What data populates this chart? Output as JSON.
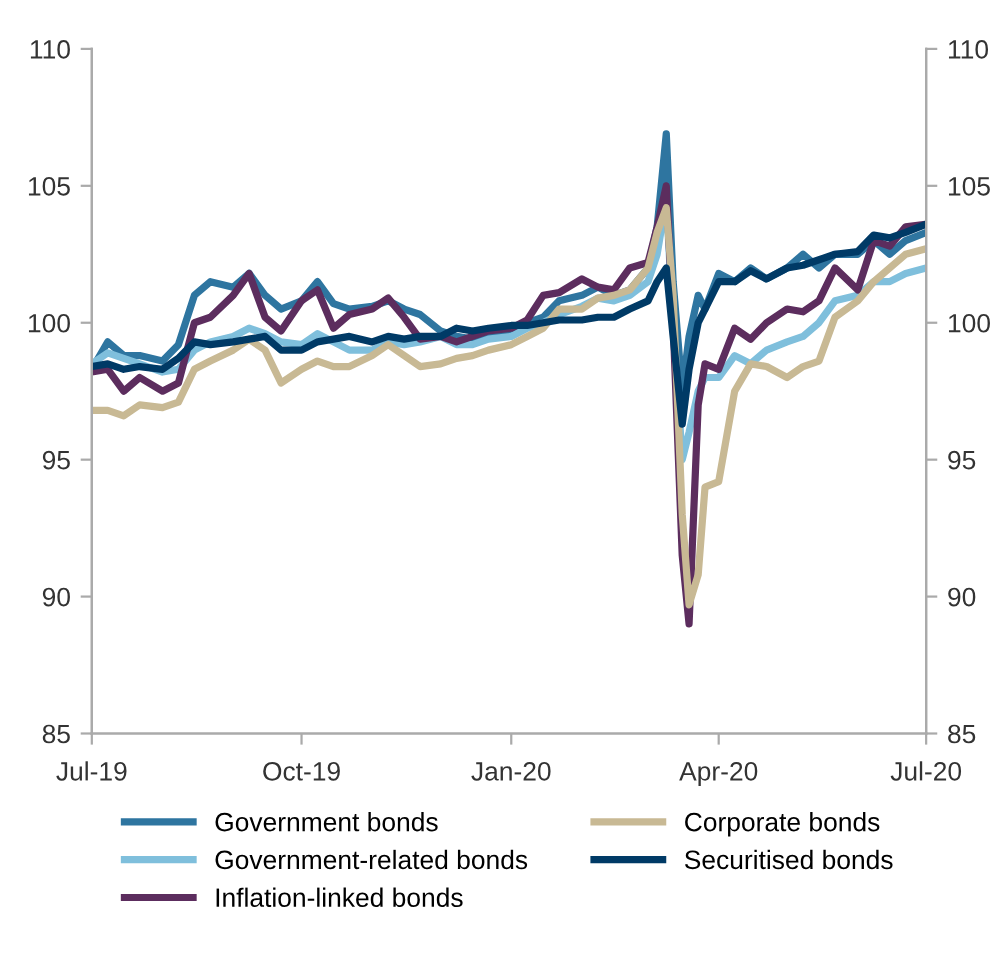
{
  "chart_data": {
    "type": "line",
    "x": [
      "2019-07-01",
      "2019-07-08",
      "2019-07-15",
      "2019-07-22",
      "2019-08-01",
      "2019-08-08",
      "2019-08-15",
      "2019-08-22",
      "2019-09-01",
      "2019-09-08",
      "2019-09-15",
      "2019-09-22",
      "2019-10-01",
      "2019-10-08",
      "2019-10-15",
      "2019-10-22",
      "2019-11-01",
      "2019-11-08",
      "2019-11-15",
      "2019-11-22",
      "2019-12-01",
      "2019-12-08",
      "2019-12-15",
      "2019-12-22",
      "2020-01-01",
      "2020-01-08",
      "2020-01-15",
      "2020-01-22",
      "2020-02-01",
      "2020-02-08",
      "2020-02-15",
      "2020-02-22",
      "2020-03-01",
      "2020-03-05",
      "2020-03-09",
      "2020-03-12",
      "2020-03-16",
      "2020-03-19",
      "2020-03-23",
      "2020-03-26",
      "2020-04-01",
      "2020-04-08",
      "2020-04-15",
      "2020-04-22",
      "2020-05-01",
      "2020-05-08",
      "2020-05-15",
      "2020-05-22",
      "2020-06-01",
      "2020-06-08",
      "2020-06-15",
      "2020-06-22",
      "2020-07-01"
    ],
    "series": [
      {
        "name": "Government bonds",
        "color": "#2e75a0",
        "values": [
          98.3,
          99.3,
          98.8,
          98.8,
          98.6,
          99.2,
          101,
          101.5,
          101.3,
          101.8,
          101,
          100.5,
          100.8,
          101.5,
          100.7,
          100.5,
          100.6,
          100.8,
          100.5,
          100.3,
          99.7,
          99.5,
          99.4,
          99.6,
          99.7,
          100,
          100.2,
          100.8,
          101,
          101.3,
          101,
          101.2,
          102,
          103.5,
          106.9,
          101.5,
          97.5,
          99.5,
          101,
          100.5,
          101.8,
          101.5,
          102,
          101.6,
          102,
          102.5,
          102,
          102.5,
          102.5,
          103,
          102.5,
          103,
          103.3
        ]
      },
      {
        "name": "Government-related bonds",
        "color": "#7fbfdc",
        "values": [
          98.5,
          98.9,
          98.7,
          98.5,
          98.2,
          98.3,
          99,
          99.3,
          99.5,
          99.8,
          99.6,
          99.3,
          99.2,
          99.6,
          99.3,
          99,
          99,
          99.3,
          99.2,
          99.3,
          99.5,
          99.2,
          99.2,
          99.4,
          99.5,
          99.8,
          100,
          100.3,
          100.6,
          100.9,
          100.8,
          101,
          101.5,
          102.5,
          104.5,
          100,
          95,
          96,
          97.5,
          98,
          98,
          98.8,
          98.5,
          99,
          99.3,
          99.5,
          100,
          100.8,
          101,
          101.5,
          101.5,
          101.8,
          102
        ]
      },
      {
        "name": "Inflation-linked bonds",
        "color": "#5c2d5e",
        "values": [
          98.2,
          98.3,
          97.5,
          98,
          97.5,
          97.8,
          100,
          100.2,
          101,
          101.8,
          100.2,
          99.7,
          100.8,
          101.2,
          99.8,
          100.3,
          100.5,
          100.9,
          100.2,
          99.4,
          99.5,
          99.3,
          99.5,
          99.7,
          99.8,
          100.1,
          101,
          101.1,
          101.6,
          101.3,
          101.2,
          102,
          102.2,
          103.5,
          105,
          100,
          91.5,
          89,
          97,
          98.5,
          98.3,
          99.8,
          99.4,
          100,
          100.5,
          100.4,
          100.8,
          102,
          101.2,
          103,
          102.8,
          103.5,
          103.6
        ]
      },
      {
        "name": "Corporate bonds",
        "color": "#c8b994",
        "values": [
          96.8,
          96.8,
          96.6,
          97,
          96.9,
          97.1,
          98.3,
          98.6,
          99,
          99.4,
          99,
          97.8,
          98.3,
          98.6,
          98.4,
          98.4,
          98.8,
          99.2,
          98.8,
          98.4,
          98.5,
          98.7,
          98.8,
          99,
          99.2,
          99.5,
          99.8,
          100.5,
          100.5,
          100.9,
          101,
          101.2,
          102,
          103.3,
          104.2,
          101,
          93,
          89.7,
          90.8,
          94,
          94.2,
          97.5,
          98.5,
          98.4,
          98,
          98.4,
          98.6,
          100.2,
          100.8,
          101.5,
          102,
          102.5,
          102.7
        ]
      },
      {
        "name": "Securitised bonds",
        "color": "#003a66",
        "values": [
          98.4,
          98.5,
          98.3,
          98.4,
          98.3,
          98.7,
          99.3,
          99.2,
          99.3,
          99.4,
          99.5,
          99,
          99,
          99.3,
          99.4,
          99.5,
          99.3,
          99.5,
          99.4,
          99.5,
          99.5,
          99.8,
          99.7,
          99.8,
          99.9,
          99.9,
          100,
          100.1,
          100.1,
          100.2,
          100.2,
          100.5,
          100.8,
          101.5,
          102,
          99.5,
          96.3,
          98.3,
          100,
          100.5,
          101.5,
          101.5,
          101.9,
          101.6,
          102,
          102.1,
          102.3,
          102.5,
          102.6,
          103.2,
          103.1,
          103.3,
          103.6
        ]
      }
    ],
    "xlim": [
      "2019-07-01",
      "2020-07-01"
    ],
    "xticks": [
      {
        "value": "2019-07-01",
        "label": "Jul-19"
      },
      {
        "value": "2019-10-01",
        "label": "Oct-19"
      },
      {
        "value": "2020-01-01",
        "label": "Jan-20"
      },
      {
        "value": "2020-04-01",
        "label": "Apr-20"
      },
      {
        "value": "2020-07-01",
        "label": "Jul-20"
      }
    ],
    "ylim": [
      85,
      110
    ],
    "yticks": [
      85,
      90,
      95,
      100,
      105,
      110
    ],
    "y2lim": [
      85,
      110
    ],
    "y2ticks": [
      85,
      90,
      95,
      100,
      105,
      110
    ],
    "grid": false,
    "legend": "bottom",
    "marker": "none",
    "line_style": "solid"
  }
}
